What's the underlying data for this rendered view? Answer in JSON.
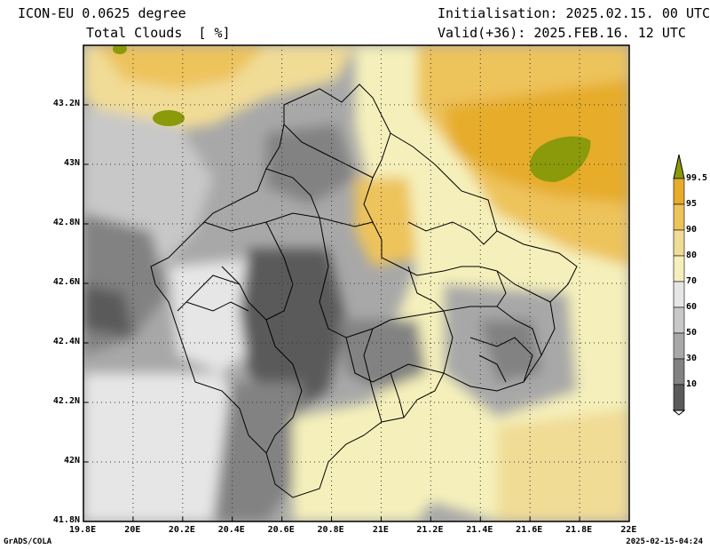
{
  "header": {
    "model": "ICON-EU 0.0625 degree",
    "variable": "Total Clouds  [ %]",
    "init": "Initialisation: 2025.02.15. 00 UTC",
    "valid": "Valid(+36): 2025.FEB.16. 12 UTC"
  },
  "axes": {
    "x_ticks": [
      "19.8E",
      "20E",
      "20.2E",
      "20.4E",
      "20.6E",
      "20.8E",
      "21E",
      "21.2E",
      "21.4E",
      "21.6E",
      "21.8E",
      "22E"
    ],
    "y_ticks": [
      "43.2N",
      "43N",
      "42.8N",
      "42.6N",
      "42.4N",
      "42.2N",
      "42N",
      "41.8N"
    ]
  },
  "legend": {
    "levels": [
      "99.5",
      "95",
      "90",
      "80",
      "70",
      "60",
      "50",
      "30",
      "10"
    ],
    "colors": [
      "#f7f7f7",
      "#5a5a5a",
      "#828282",
      "#a8a8a8",
      "#c8c8c8",
      "#e6e6e6",
      "#f5f0bb",
      "#f1dc96",
      "#edc35b",
      "#e6ac2a",
      "#8a9a0a"
    ]
  },
  "footer": {
    "credit": "GrADS/COLA",
    "timestamp": "2025-02-15-04:24"
  }
}
